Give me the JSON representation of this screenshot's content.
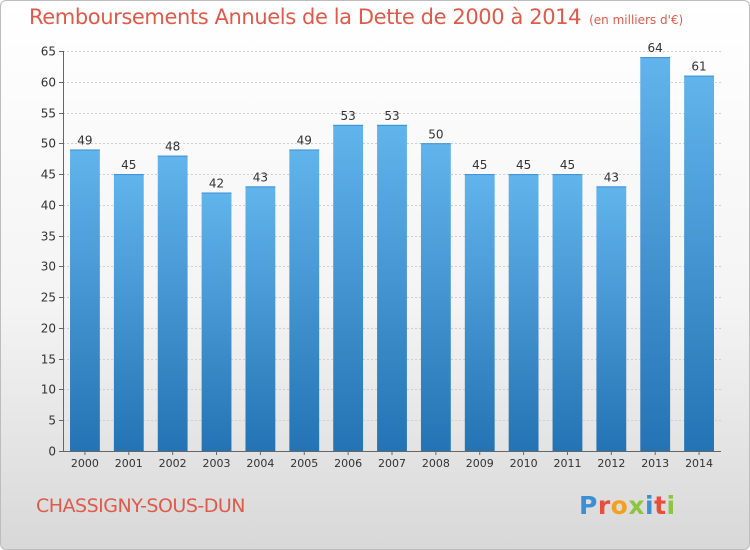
{
  "header": {
    "title": "Remboursements Annuels de la Dette de 2000 à 2014",
    "subtitle": "(en milliers d'€)"
  },
  "footer": {
    "commune": "CHASSIGNY-SOUS-DUN",
    "brand": "Proxiti"
  },
  "colors": {
    "title": "#e05a4a",
    "bar_top": "#62b4ec",
    "bar_bottom": "#2473b4",
    "brand_letters": [
      "#3a8fd6",
      "#e94e3c",
      "#f2a11f",
      "#8cc63f",
      "#3a8fd6",
      "#e94e3c",
      "#8cc63f"
    ]
  },
  "chart_data": {
    "type": "bar",
    "title": "Remboursements Annuels de la Dette de 2000 à 2014",
    "subtitle": "(en milliers d'€)",
    "categories": [
      "2000",
      "2001",
      "2002",
      "2003",
      "2004",
      "2005",
      "2006",
      "2007",
      "2008",
      "2009",
      "2010",
      "2011",
      "2012",
      "2013",
      "2014"
    ],
    "values": [
      49,
      45,
      48,
      42,
      43,
      49,
      53,
      53,
      50,
      45,
      45,
      45,
      43,
      64,
      61
    ],
    "data_labels": [
      "49",
      "45",
      "48",
      "42",
      "43",
      "49",
      "53",
      "53",
      "50",
      "45",
      "45",
      "45",
      "43",
      "64",
      "61"
    ],
    "ylim": [
      0,
      65
    ],
    "yticks": [
      0,
      5,
      10,
      15,
      20,
      25,
      30,
      35,
      40,
      45,
      50,
      55,
      60,
      65
    ],
    "xlabel": "",
    "ylabel": "",
    "grid": true,
    "legend": false
  }
}
